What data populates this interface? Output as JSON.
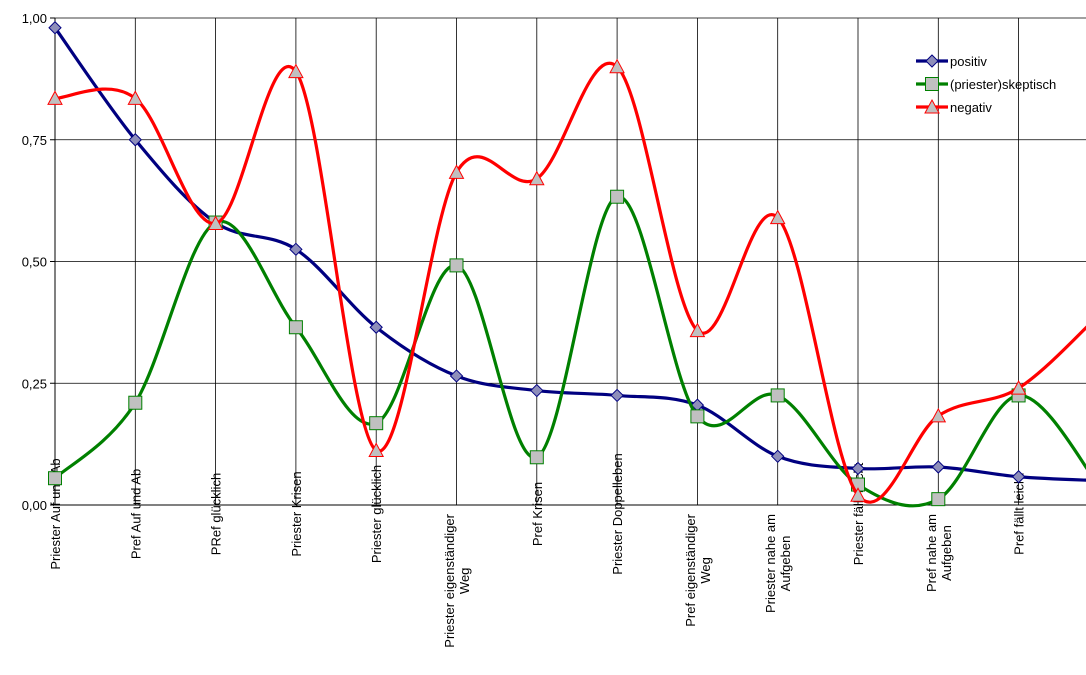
{
  "chart_data": {
    "type": "line",
    "smooth": true,
    "grid": true,
    "legend_position": "top-right",
    "ylim": [
      0,
      1
    ],
    "yticks": [
      "0,00",
      "0,25",
      "0,50",
      "0,75",
      "1,00"
    ],
    "categories": [
      [
        "Priester Auf und Ab"
      ],
      [
        "Pref Auf und Ab"
      ],
      [
        "PRef glücklich"
      ],
      [
        "Priester Krisen"
      ],
      [
        "Priester glücklich"
      ],
      [
        "Priester eigenständiger",
        "Weg"
      ],
      [
        "Pref Krisen"
      ],
      [
        "Priester Doppelleben"
      ],
      [
        "Pref eigenständiger",
        "Weg"
      ],
      [
        "Priester nahe am",
        "Aufgeben"
      ],
      [
        "Priester fällt leicht"
      ],
      [
        "Pref nahe am",
        "Aufgeben"
      ],
      [
        "Pref fällt leicht"
      ],
      [
        ""
      ]
    ],
    "series": [
      {
        "name": "positiv",
        "color": "#000080",
        "marker": "diamond",
        "marker_color": "#8E8EBA",
        "values": [
          0.98,
          0.75,
          0.58,
          0.525,
          0.365,
          0.265,
          0.235,
          0.225,
          0.205,
          0.1,
          0.075,
          0.078,
          0.058,
          0.05
        ]
      },
      {
        "name": "(priester)skeptisch",
        "color": "#008000",
        "marker": "square",
        "marker_color": "#C0C0C0",
        "values": [
          0.055,
          0.21,
          0.58,
          0.365,
          0.168,
          0.492,
          0.098,
          0.633,
          0.182,
          0.225,
          0.042,
          0.012,
          0.225,
          0.04
        ]
      },
      {
        "name": "negativ",
        "color": "#FF0000",
        "marker": "triangle",
        "marker_color": "#C0C0C0",
        "values": [
          0.835,
          0.835,
          0.578,
          0.89,
          0.112,
          0.683,
          0.67,
          0.9,
          0.358,
          0.59,
          0.02,
          0.183,
          0.24,
          0.39
        ]
      }
    ]
  }
}
